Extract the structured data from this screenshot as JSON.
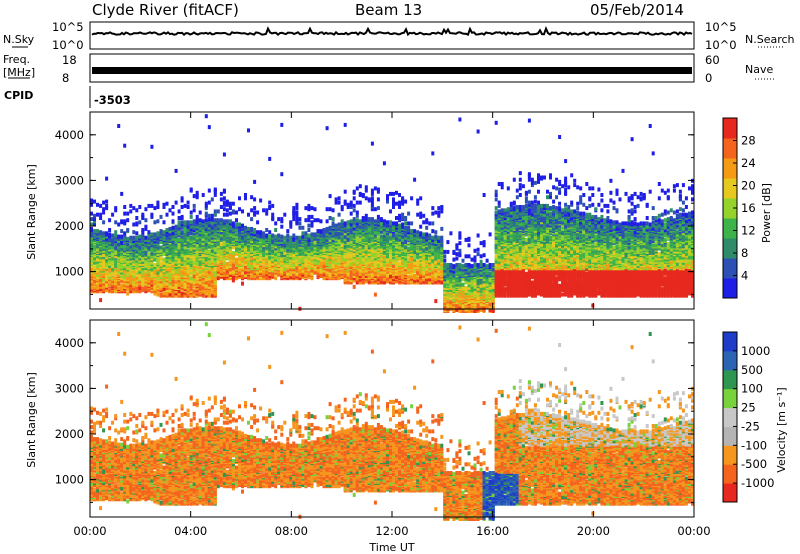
{
  "header": {
    "station": "Clyde River (fitACF)",
    "beam": "Beam 13",
    "date": "05/Feb/2014"
  },
  "nsky_panel": {
    "label_left": "N.Sky",
    "label_right": "N.Search",
    "left_ticks": [
      "10^5",
      "10^0"
    ],
    "right_ticks": [
      "10^5",
      "10^0"
    ]
  },
  "freq_panel": {
    "label_left_1": "Freq.",
    "label_left_2": "[MHz]",
    "label_right": "Nave",
    "left_ticks": [
      "18",
      "8"
    ],
    "right_ticks": [
      "60",
      "0"
    ]
  },
  "cpid_panel": {
    "label": "CPID",
    "value": "-3503"
  },
  "colors": {
    "power": [
      "#1e1ee6",
      "#2c50b4",
      "#2e8c6a",
      "#3cb44a",
      "#96d22c",
      "#e6c81e",
      "#f59a14",
      "#f5641e",
      "#e6281e"
    ],
    "velocity": [
      "#e6281e",
      "#f5641e",
      "#f5961e",
      "#b4b4b4",
      "#c8c8c8",
      "#78d23c",
      "#2e9650",
      "#2c64b4",
      "#1e3cc8"
    ]
  },
  "chart_data": [
    {
      "type": "heatmap",
      "ylabel": "Slant Range [km]",
      "yticks": [
        "1000",
        "2000",
        "3000",
        "4000"
      ],
      "colorbar_label": "Power [dB]",
      "colorbar_ticks": [
        "4",
        "8",
        "12",
        "16",
        "20",
        "24",
        "28"
      ],
      "colorbar_range": [
        0,
        32
      ]
    },
    {
      "type": "heatmap",
      "ylabel": "Slant Range [km]",
      "yticks": [
        "1000",
        "2000",
        "3000",
        "4000"
      ],
      "colorbar_label": "Velocity [m s⁻¹]",
      "colorbar_ticks": [
        "1000",
        "500",
        "100",
        "25",
        "-25",
        "-100",
        "-500",
        "-1000"
      ],
      "xlabel": "Time UT",
      "xticks": [
        "00:00",
        "04:00",
        "08:00",
        "12:00",
        "16:00",
        "20:00",
        "00:00"
      ],
      "xlim_hours": [
        0,
        24
      ],
      "ylim_km": [
        180,
        4500
      ]
    }
  ]
}
